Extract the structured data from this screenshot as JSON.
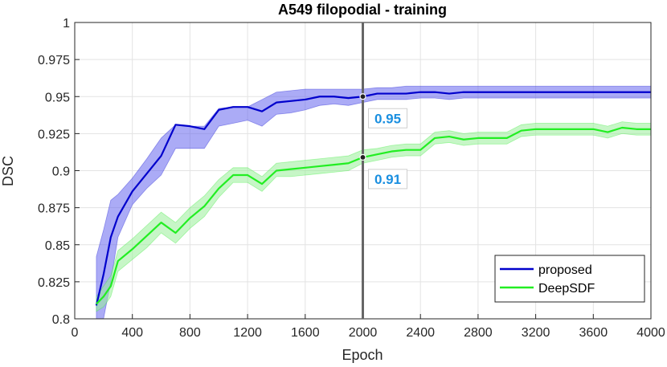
{
  "chart_data": {
    "type": "line",
    "title": "A549 filopodial - training",
    "xlabel": "Epoch",
    "ylabel": "DSC",
    "xlim": [
      0,
      4000
    ],
    "ylim": [
      0.8,
      1.0
    ],
    "xticks": [
      0,
      400,
      800,
      1200,
      1600,
      2000,
      2400,
      2800,
      3200,
      3600,
      4000
    ],
    "xtick_labels": [
      "0",
      "400",
      "800",
      "1200",
      "1600",
      "2000",
      "2400",
      "2800",
      "3200",
      "3600",
      "4000"
    ],
    "yticks": [
      0.8,
      0.825,
      0.85,
      0.875,
      0.9,
      0.925,
      0.95,
      0.975,
      1.0
    ],
    "ytick_labels": [
      "0.8",
      "0.825",
      "0.85",
      "0.875",
      "0.9",
      "0.925",
      "0.95",
      "0.975",
      "1"
    ],
    "grid": true,
    "legend_position": "bottom-right",
    "series": [
      {
        "name": "proposed",
        "color": "#0000cc",
        "band_color": "#6666ee",
        "x": [
          150,
          200,
          250,
          300,
          400,
          500,
          600,
          700,
          800,
          900,
          1000,
          1100,
          1200,
          1300,
          1400,
          1500,
          1600,
          1700,
          1800,
          1900,
          2000,
          2100,
          2200,
          2300,
          2400,
          2500,
          2600,
          2700,
          2800,
          2900,
          3000,
          3100,
          3200,
          3300,
          3400,
          3500,
          3600,
          3700,
          3800,
          3900,
          4000
        ],
        "y": [
          0.809,
          0.83,
          0.855,
          0.869,
          0.886,
          0.898,
          0.91,
          0.931,
          0.93,
          0.928,
          0.941,
          0.943,
          0.943,
          0.94,
          0.946,
          0.947,
          0.948,
          0.95,
          0.95,
          0.949,
          0.95,
          0.952,
          0.952,
          0.952,
          0.953,
          0.953,
          0.952,
          0.953,
          0.953,
          0.953,
          0.953,
          0.953,
          0.953,
          0.953,
          0.953,
          0.953,
          0.953,
          0.953,
          0.953,
          0.953,
          0.953
        ],
        "lower": [
          0.8,
          0.8,
          0.825,
          0.855,
          0.877,
          0.888,
          0.897,
          0.915,
          0.915,
          0.915,
          0.93,
          0.932,
          0.934,
          0.93,
          0.938,
          0.939,
          0.941,
          0.944,
          0.945,
          0.944,
          0.946,
          0.948,
          0.948,
          0.948,
          0.949,
          0.949,
          0.948,
          0.949,
          0.949,
          0.949,
          0.949,
          0.949,
          0.949,
          0.949,
          0.949,
          0.949,
          0.949,
          0.949,
          0.949,
          0.949,
          0.949
        ],
        "upper": [
          0.842,
          0.86,
          0.88,
          0.884,
          0.895,
          0.908,
          0.922,
          0.931,
          0.93,
          0.93,
          0.942,
          0.943,
          0.943,
          0.948,
          0.953,
          0.954,
          0.955,
          0.955,
          0.955,
          0.955,
          0.955,
          0.956,
          0.956,
          0.957,
          0.957,
          0.957,
          0.957,
          0.957,
          0.957,
          0.957,
          0.957,
          0.957,
          0.957,
          0.957,
          0.957,
          0.957,
          0.957,
          0.957,
          0.957,
          0.957,
          0.957
        ]
      },
      {
        "name": "DeepSDF",
        "color": "#22ee22",
        "band_color": "#99ee99",
        "x": [
          150,
          200,
          250,
          300,
          400,
          500,
          600,
          700,
          800,
          900,
          1000,
          1100,
          1200,
          1300,
          1400,
          1500,
          1600,
          1700,
          1800,
          1900,
          2000,
          2100,
          2200,
          2300,
          2400,
          2500,
          2600,
          2700,
          2800,
          2900,
          3000,
          3100,
          3200,
          3300,
          3400,
          3500,
          3600,
          3700,
          3800,
          3900,
          4000
        ],
        "y": [
          0.81,
          0.815,
          0.822,
          0.839,
          0.847,
          0.856,
          0.865,
          0.858,
          0.868,
          0.876,
          0.888,
          0.897,
          0.897,
          0.891,
          0.9,
          0.901,
          0.902,
          0.903,
          0.904,
          0.905,
          0.909,
          0.911,
          0.913,
          0.914,
          0.914,
          0.922,
          0.923,
          0.921,
          0.922,
          0.922,
          0.922,
          0.927,
          0.928,
          0.928,
          0.928,
          0.928,
          0.928,
          0.926,
          0.929,
          0.928,
          0.928
        ],
        "lower": [
          0.805,
          0.808,
          0.815,
          0.832,
          0.84,
          0.848,
          0.858,
          0.851,
          0.861,
          0.869,
          0.882,
          0.892,
          0.892,
          0.886,
          0.896,
          0.896,
          0.897,
          0.898,
          0.899,
          0.9,
          0.905,
          0.907,
          0.909,
          0.91,
          0.91,
          0.918,
          0.919,
          0.917,
          0.918,
          0.918,
          0.918,
          0.923,
          0.924,
          0.924,
          0.924,
          0.924,
          0.924,
          0.922,
          0.925,
          0.924,
          0.924
        ],
        "upper": [
          0.815,
          0.822,
          0.829,
          0.846,
          0.854,
          0.863,
          0.872,
          0.865,
          0.875,
          0.883,
          0.894,
          0.902,
          0.902,
          0.896,
          0.905,
          0.906,
          0.907,
          0.908,
          0.909,
          0.91,
          0.914,
          0.915,
          0.917,
          0.918,
          0.918,
          0.926,
          0.927,
          0.925,
          0.926,
          0.926,
          0.926,
          0.931,
          0.932,
          0.932,
          0.932,
          0.932,
          0.932,
          0.93,
          0.933,
          0.932,
          0.932
        ]
      }
    ],
    "vline": {
      "x": 2000,
      "color": "#666666"
    },
    "annotations": [
      {
        "series": "proposed",
        "x": 2000,
        "y": 0.95,
        "text": "0.95",
        "color": "#1a8fe0"
      },
      {
        "series": "DeepSDF",
        "x": 2000,
        "y": 0.909,
        "text": "0.91",
        "color": "#1a8fe0"
      }
    ]
  }
}
